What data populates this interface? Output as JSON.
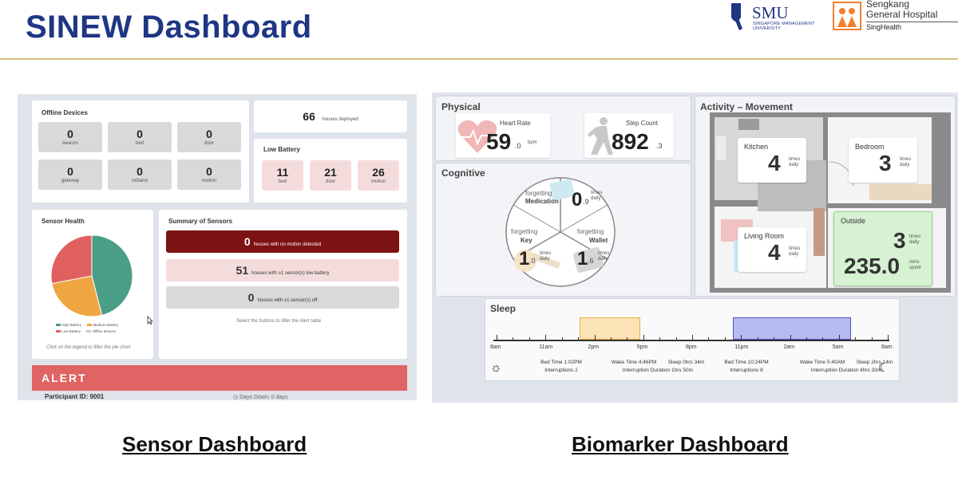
{
  "header": {
    "title": "SINEW Dashboard",
    "smu_name": "SMU",
    "smu_sub_1": "SINGAPORE MANAGEMENT",
    "smu_sub_2": "UNIVERSITY",
    "hospital_line1": "Sengkang",
    "hospital_line2": "General Hospital",
    "hospital_line3": "SingHealth",
    "accent_color": "#1f3684"
  },
  "sensor": {
    "offline_title": "Offline Devices",
    "offline": [
      {
        "value": "0",
        "label": "beacon"
      },
      {
        "value": "0",
        "label": "bed"
      },
      {
        "value": "0",
        "label": "door"
      },
      {
        "value": "0",
        "label": "gateway"
      },
      {
        "value": "0",
        "label": "miband"
      },
      {
        "value": "0",
        "label": "motion"
      }
    ],
    "deployed_value": "66",
    "deployed_label": "houses deployed",
    "battery_title": "Low Battery",
    "battery": [
      {
        "value": "11",
        "label": "bed"
      },
      {
        "value": "21",
        "label": "door"
      },
      {
        "value": "26",
        "label": "motion"
      }
    ],
    "health_title": "Sensor Health",
    "legend": [
      "High Battery",
      "Medium Battery",
      "Low Battery",
      "Offline devices"
    ],
    "pie_hint": "Click on the legend to filter the pie chart",
    "summary_title": "Summary of Sensors",
    "summary": [
      {
        "value": "0",
        "text": "houses with no motion detected"
      },
      {
        "value": "51",
        "text": "houses with ≥1 sensor(s) low battery"
      },
      {
        "value": "0",
        "text": "houses with ≥1 sensor(s) off"
      }
    ],
    "summary_hint": "Select the buttons to filter the Alert table",
    "alert_label": "ALERT",
    "participant": "Participant ID: 9001",
    "days_down": "Days Down: 0 days"
  },
  "bio": {
    "physical_title": "Physical",
    "heart_label": "Heart Rate",
    "heart_value": "59",
    "heart_dec": ".0",
    "heart_unit": "bpm",
    "step_label": "Step Count",
    "step_value": "892",
    "step_dec": ".3",
    "cognitive_title": "Cognitive",
    "forgetting": "forgetting",
    "medication_label": "Medication",
    "medication_value": "0",
    "medication_dec": ".9",
    "key_label": "Key",
    "key_value": "1",
    "key_dec": ".0",
    "wallet_label": "Wallet",
    "wallet_value": "1",
    "wallet_dec": ".6",
    "times": "times",
    "daily": "daily",
    "activity_title": "Activity – Movement",
    "kitchen_label": "Kitchen",
    "kitchen_value": "4",
    "bedroom_label": "Bedroom",
    "bedroom_value": "3",
    "living_label": "Living Room",
    "living_value": "4",
    "outside_label": "Outside",
    "outside_value": "3",
    "outside_mins": "235.0",
    "mins": "mins",
    "spent": "spent",
    "sleep_title": "Sleep",
    "ticks": [
      "8am",
      "11am",
      "2pm",
      "5pm",
      "8pm",
      "11pm",
      "2am",
      "5am",
      "8am"
    ],
    "sleep1": {
      "bed": "Bed Time 1:02PM",
      "wake": "Wake Time 4:46PM",
      "sleep": "Sleep 0hrs 34m",
      "interruptions": "Interruptions 2",
      "duration": "Interruption Duration 1hrs 50m"
    },
    "sleep2": {
      "bed": "Bed Time 10:24PM",
      "wake": "Wake Time 5:40AM",
      "sleep": "Sleep 2hrs 14m",
      "interruptions": "Interruptions 8",
      "duration": "Interruption Duration 4hrs 33m"
    }
  },
  "chart_data": {
    "type": "pie",
    "title": "Sensor Health",
    "categories": [
      "High Battery",
      "Medium Battery",
      "Low Battery",
      "Offline devices"
    ],
    "values": [
      46,
      26,
      28,
      0
    ],
    "colors": [
      "#4a9d86",
      "#f0a640",
      "#e06060",
      "#c8c8c8"
    ],
    "legend_position": "bottom"
  },
  "captions": {
    "sensor": "Sensor Dashboard",
    "biomarker": "Biomarker Dashboard"
  }
}
